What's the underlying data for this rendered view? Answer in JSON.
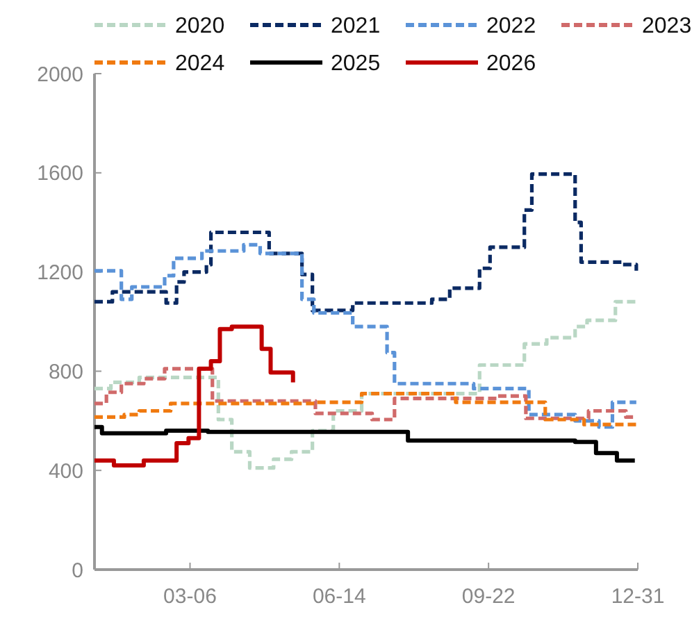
{
  "chart_data": {
    "type": "step",
    "legend": "top",
    "grid": false,
    "xlim": [
      "--01-01",
      "--12-31"
    ],
    "xticks": [
      {
        "value": "--03-06",
        "label": "03-06"
      },
      {
        "value": "--06-14",
        "label": "06-14"
      },
      {
        "value": "--09-22",
        "label": "09-22"
      },
      {
        "value": "--12-31",
        "label": "12-31"
      }
    ],
    "ylim": [
      0,
      2000
    ],
    "yticks": [
      0,
      400,
      800,
      1200,
      1600,
      2000
    ],
    "series": [
      {
        "name": "2020",
        "color": "#b9d7c4",
        "line_style": "dashed",
        "x": [
          "--01-01",
          "--01-12",
          "--01-31",
          "--03-09",
          "--03-25",
          "--04-03",
          "--04-15",
          "--05-01",
          "--05-13",
          "--05-27",
          "--06-10",
          "--06-29",
          "--09-16",
          "--10-16",
          "--10-31",
          "--11-19",
          "--11-27",
          "--12-16",
          "--12-30"
        ],
        "values": [
          730,
          755,
          775,
          775,
          605,
          475,
          410,
          445,
          475,
          560,
          640,
          710,
          825,
          910,
          935,
          980,
          1005,
          1080,
          1080
        ]
      },
      {
        "name": "2021",
        "color": "#0b2a63",
        "line_style": "dashed",
        "x": [
          "--01-01",
          "--01-13",
          "--02-18",
          "--02-25",
          "--03-02",
          "--03-17",
          "--03-20",
          "--04-28",
          "--05-20",
          "--05-27",
          "--06-23",
          "--08-15",
          "--08-27",
          "--09-16",
          "--09-23",
          "--10-16",
          "--10-21",
          "--11-19",
          "--11-23",
          "--12-21",
          "--12-30"
        ],
        "values": [
          1080,
          1120,
          1075,
          1160,
          1200,
          1230,
          1360,
          1275,
          1190,
          1045,
          1075,
          1090,
          1135,
          1215,
          1300,
          1450,
          1595,
          1400,
          1240,
          1230,
          1205
        ]
      },
      {
        "name": "2022",
        "color": "#5b93d8",
        "line_style": "dashed",
        "x": [
          "--01-01",
          "--01-19",
          "--01-26",
          "--02-17",
          "--02-23",
          "--03-14",
          "--04-11",
          "--04-22",
          "--05-20",
          "--05-28",
          "--06-23",
          "--07-16",
          "--07-21",
          "--09-12",
          "--10-19",
          "--11-19",
          "--12-05",
          "--12-14",
          "--12-30"
        ],
        "values": [
          1205,
          1090,
          1140,
          1185,
          1255,
          1285,
          1310,
          1275,
          1090,
          1035,
          980,
          875,
          750,
          730,
          625,
          600,
          575,
          675,
          675
        ]
      },
      {
        "name": "2023",
        "color": "#d06a6a",
        "line_style": "dashed",
        "x": [
          "--01-01",
          "--01-09",
          "--01-19",
          "--02-03",
          "--02-17",
          "--03-21",
          "--05-29",
          "--07-06",
          "--07-21",
          "--09-28",
          "--10-17",
          "--11-28",
          "--12-23",
          "--12-30"
        ],
        "values": [
          670,
          715,
          750,
          770,
          810,
          680,
          630,
          605,
          690,
          700,
          610,
          640,
          615,
          615
        ]
      },
      {
        "name": "2024",
        "color": "#f07a10",
        "line_style": "dashed",
        "x": [
          "--01-01",
          "--01-21",
          "--01-31",
          "--02-21",
          "--05-29",
          "--06-29",
          "--08-31",
          "--10-30",
          "--11-25",
          "--12-30"
        ],
        "values": [
          615,
          625,
          640,
          670,
          675,
          710,
          675,
          605,
          585,
          585
        ]
      },
      {
        "name": "2025",
        "color": "#000000",
        "line_style": "solid",
        "x": [
          "--01-01",
          "--01-06",
          "--02-18",
          "--03-18",
          "--07-30",
          "--11-19",
          "--12-03",
          "--12-17",
          "--12-29"
        ],
        "values": [
          575,
          550,
          560,
          555,
          520,
          515,
          470,
          440,
          440
        ]
      },
      {
        "name": "2026",
        "color": "#c00000",
        "line_style": "solid",
        "x": [
          "--01-01",
          "--01-14",
          "--02-03",
          "--02-25",
          "--03-05",
          "--03-12",
          "--03-20",
          "--03-26",
          "--04-03",
          "--04-23",
          "--04-29",
          "--05-14"
        ],
        "values": [
          440,
          420,
          440,
          510,
          530,
          810,
          840,
          970,
          980,
          890,
          795,
          755
        ]
      }
    ]
  }
}
